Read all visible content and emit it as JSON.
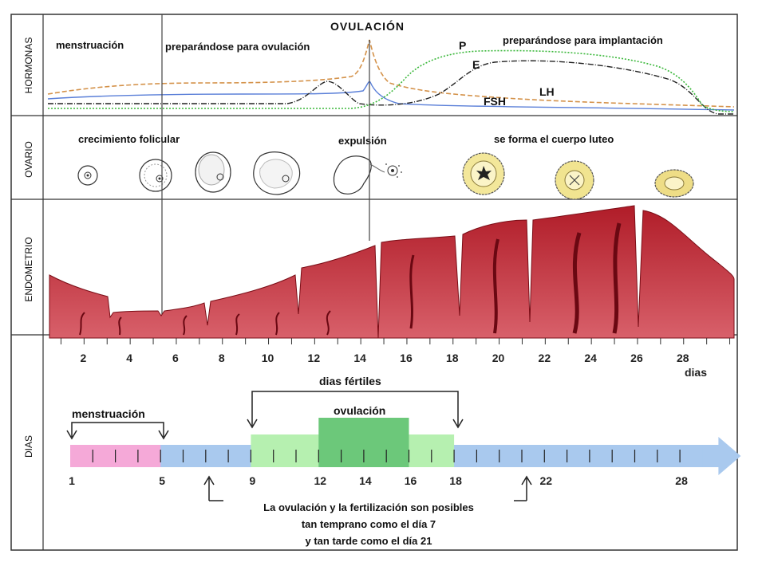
{
  "rows": {
    "hormones": "HORMONAS",
    "ovary": "OVARIO",
    "endometrium": "ENDOMETRIO",
    "days": "DIAS"
  },
  "hormones": {
    "ovulation_title": "OVULACIÓN",
    "menstruation": "menstruación",
    "preparing_ovulation": "preparándose para ovulación",
    "preparing_implantation": "preparándose para implantación",
    "curve_labels": {
      "p": "P",
      "e": "E",
      "lh": "LH",
      "fsh": "FSH"
    },
    "colors": {
      "lh": "#d4924a",
      "fsh": "#5a7fd8",
      "estrogen": "#222222",
      "progesterone": "#3bb83b"
    }
  },
  "ovary": {
    "follicular_growth": "crecimiento folicular",
    "expulsion": "expulsión",
    "corpus_luteum": "se forma el cuerpo luteo"
  },
  "endometrium": {
    "day_ticks": [
      "2",
      "4",
      "6",
      "8",
      "10",
      "12",
      "14",
      "16",
      "18",
      "20",
      "22",
      "24",
      "26",
      "28"
    ],
    "days_label": "dias",
    "color": "#a01822"
  },
  "calendar": {
    "fertile_days": "dias fértiles",
    "menstruation": "menstruación",
    "ovulation": "ovulación",
    "ticks": [
      "1",
      "5",
      "9",
      "12",
      "14",
      "16",
      "18",
      "22",
      "28"
    ],
    "note_line1": "La ovulación y la fertilización son posibles",
    "note_line2": "tan temprano como el día 7",
    "note_line3": "y tan tarde como el día 21",
    "colors": {
      "menstruation": "#f5a9d8",
      "normal": "#a9c9ee",
      "fertile": "#b6f0b0",
      "ovulation": "#6cc87a"
    }
  }
}
